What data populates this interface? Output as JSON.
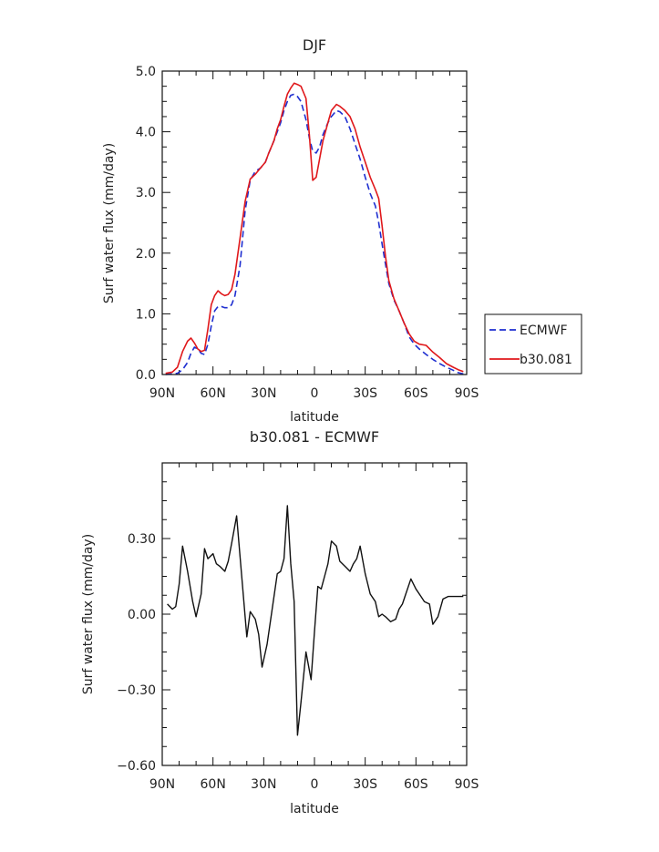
{
  "chart_data": [
    {
      "type": "line",
      "title": "DJF",
      "xlabel": "latitude",
      "ylabel": "Surf water flux (mm/day)",
      "xlim": [
        90,
        -90
      ],
      "ylim": [
        0,
        5
      ],
      "xticks": [
        {
          "value": 90,
          "label": "90N"
        },
        {
          "value": 60,
          "label": "60N"
        },
        {
          "value": 30,
          "label": "30N"
        },
        {
          "value": 0,
          "label": "0"
        },
        {
          "value": -30,
          "label": "30S"
        },
        {
          "value": -60,
          "label": "60S"
        },
        {
          "value": -90,
          "label": "90S"
        }
      ],
      "yticks": [
        {
          "value": 0,
          "label": "0.0"
        },
        {
          "value": 1,
          "label": "1.0"
        },
        {
          "value": 2,
          "label": "2.0"
        },
        {
          "value": 3,
          "label": "3.0"
        },
        {
          "value": 4,
          "label": "4.0"
        },
        {
          "value": 5,
          "label": "5.0"
        }
      ],
      "legend_position": "right",
      "series": [
        {
          "name": "ECMWF",
          "color": "#1f2fd0",
          "dash": "dashed",
          "x": [
            88,
            84,
            81,
            78,
            75,
            73,
            71,
            69,
            67,
            65,
            63,
            61,
            59,
            57,
            55,
            53,
            51,
            49,
            47,
            44,
            41,
            38,
            35,
            32,
            29,
            27,
            24,
            22,
            20,
            18,
            16,
            14,
            12,
            10,
            8,
            5,
            3,
            1,
            -1,
            -3,
            -5,
            -8,
            -10,
            -13,
            -15,
            -18,
            -21,
            -24,
            -27,
            -30,
            -33,
            -36,
            -38,
            -40,
            -42,
            -44,
            -47,
            -50,
            -53,
            -56,
            -59,
            -62,
            -66,
            -70,
            -74,
            -78,
            -82,
            -85,
            -88
          ],
          "y": [
            0.0,
            0.01,
            0.02,
            0.08,
            0.2,
            0.35,
            0.45,
            0.42,
            0.35,
            0.33,
            0.5,
            0.8,
            1.05,
            1.12,
            1.12,
            1.1,
            1.1,
            1.15,
            1.3,
            1.8,
            2.7,
            3.2,
            3.35,
            3.4,
            3.5,
            3.65,
            3.85,
            4.0,
            4.15,
            4.35,
            4.5,
            4.6,
            4.62,
            4.58,
            4.5,
            4.2,
            3.9,
            3.68,
            3.65,
            3.75,
            3.95,
            4.15,
            4.25,
            4.35,
            4.33,
            4.25,
            4.05,
            3.8,
            3.55,
            3.25,
            2.98,
            2.78,
            2.5,
            2.15,
            1.82,
            1.5,
            1.23,
            1.05,
            0.85,
            0.62,
            0.5,
            0.42,
            0.33,
            0.25,
            0.18,
            0.12,
            0.07,
            0.03,
            0.01
          ]
        },
        {
          "name": "b30.081",
          "color": "#e0181b",
          "dash": "solid",
          "x": [
            88,
            84,
            81,
            78,
            75,
            73,
            71,
            69,
            67,
            65,
            63,
            61,
            59,
            57,
            55,
            53,
            51,
            49,
            47,
            44,
            41,
            38,
            35,
            32,
            29,
            27,
            24,
            22,
            20,
            18,
            16,
            14,
            12,
            10,
            8,
            5,
            3,
            1,
            -1,
            -3,
            -5,
            -8,
            -10,
            -13,
            -15,
            -18,
            -21,
            -24,
            -27,
            -30,
            -33,
            -36,
            -38,
            -40,
            -42,
            -44,
            -47,
            -50,
            -53,
            -56,
            -59,
            -62,
            -66,
            -70,
            -74,
            -78,
            -82,
            -85,
            -88
          ],
          "y": [
            0.02,
            0.04,
            0.12,
            0.38,
            0.55,
            0.6,
            0.52,
            0.42,
            0.38,
            0.4,
            0.75,
            1.15,
            1.3,
            1.38,
            1.33,
            1.3,
            1.32,
            1.4,
            1.65,
            2.25,
            2.85,
            3.22,
            3.3,
            3.4,
            3.5,
            3.65,
            3.85,
            4.05,
            4.2,
            4.42,
            4.62,
            4.72,
            4.8,
            4.78,
            4.75,
            4.55,
            3.95,
            3.2,
            3.25,
            3.55,
            3.85,
            4.15,
            4.35,
            4.45,
            4.42,
            4.35,
            4.25,
            4.05,
            3.75,
            3.5,
            3.25,
            3.05,
            2.9,
            2.45,
            1.95,
            1.55,
            1.25,
            1.05,
            0.85,
            0.67,
            0.55,
            0.5,
            0.48,
            0.37,
            0.28,
            0.18,
            0.12,
            0.08,
            0.05
          ]
        }
      ]
    },
    {
      "type": "line",
      "title": "b30.081 - ECMWF",
      "xlabel": "latitude",
      "ylabel": "Surf water flux (mm/day)",
      "xlim": [
        90,
        -90
      ],
      "ylim": [
        -0.6,
        0.6
      ],
      "xticks": [
        {
          "value": 90,
          "label": "90N"
        },
        {
          "value": 60,
          "label": "60N"
        },
        {
          "value": 30,
          "label": "30N"
        },
        {
          "value": 0,
          "label": "0"
        },
        {
          "value": -30,
          "label": "30S"
        },
        {
          "value": -60,
          "label": "60S"
        },
        {
          "value": -90,
          "label": "90S"
        }
      ],
      "yticks": [
        {
          "value": -0.6,
          "label": "−0.60"
        },
        {
          "value": -0.3,
          "label": "−0.30"
        },
        {
          "value": 0.0,
          "label": "0.00"
        },
        {
          "value": 0.3,
          "label": "0.30"
        }
      ],
      "series": [
        {
          "color": "#111111",
          "dash": "solid",
          "x": [
            87,
            84,
            82,
            80,
            78,
            75,
            72,
            70,
            67,
            65,
            63,
            60,
            58,
            56,
            53,
            51,
            49,
            46,
            43,
            40,
            38,
            35,
            33,
            31,
            28,
            25,
            22,
            20,
            18,
            16,
            14,
            12,
            10,
            8,
            5,
            2,
            0,
            -2,
            -4,
            -6,
            -8,
            -10,
            -13,
            -15,
            -18,
            -21,
            -23,
            -25,
            -27,
            -30,
            -33,
            -36,
            -38,
            -40,
            -42,
            -45,
            -48,
            -50,
            -52,
            -54,
            -57,
            -60,
            -63,
            -65,
            -68,
            -70,
            -73,
            -76,
            -79,
            -82,
            -85,
            -88
          ],
          "y": [
            0.04,
            0.02,
            0.03,
            0.12,
            0.27,
            0.17,
            0.05,
            -0.01,
            0.08,
            0.26,
            0.22,
            0.24,
            0.2,
            0.19,
            0.17,
            0.21,
            0.28,
            0.39,
            0.15,
            -0.09,
            0.01,
            -0.02,
            -0.08,
            -0.21,
            -0.12,
            0.02,
            0.16,
            0.17,
            0.22,
            0.43,
            0.2,
            0.05,
            -0.48,
            -0.35,
            -0.15,
            -0.26,
            -0.07,
            0.11,
            0.1,
            0.15,
            0.2,
            0.29,
            0.27,
            0.21,
            0.19,
            0.17,
            0.2,
            0.22,
            0.27,
            0.16,
            0.08,
            0.05,
            -0.01,
            0.0,
            -0.01,
            -0.03,
            -0.02,
            0.02,
            0.04,
            0.08,
            0.14,
            0.1,
            0.07,
            0.05,
            0.04,
            -0.04,
            -0.01,
            0.06,
            0.07,
            0.07,
            0.07,
            0.07
          ]
        }
      ]
    }
  ]
}
